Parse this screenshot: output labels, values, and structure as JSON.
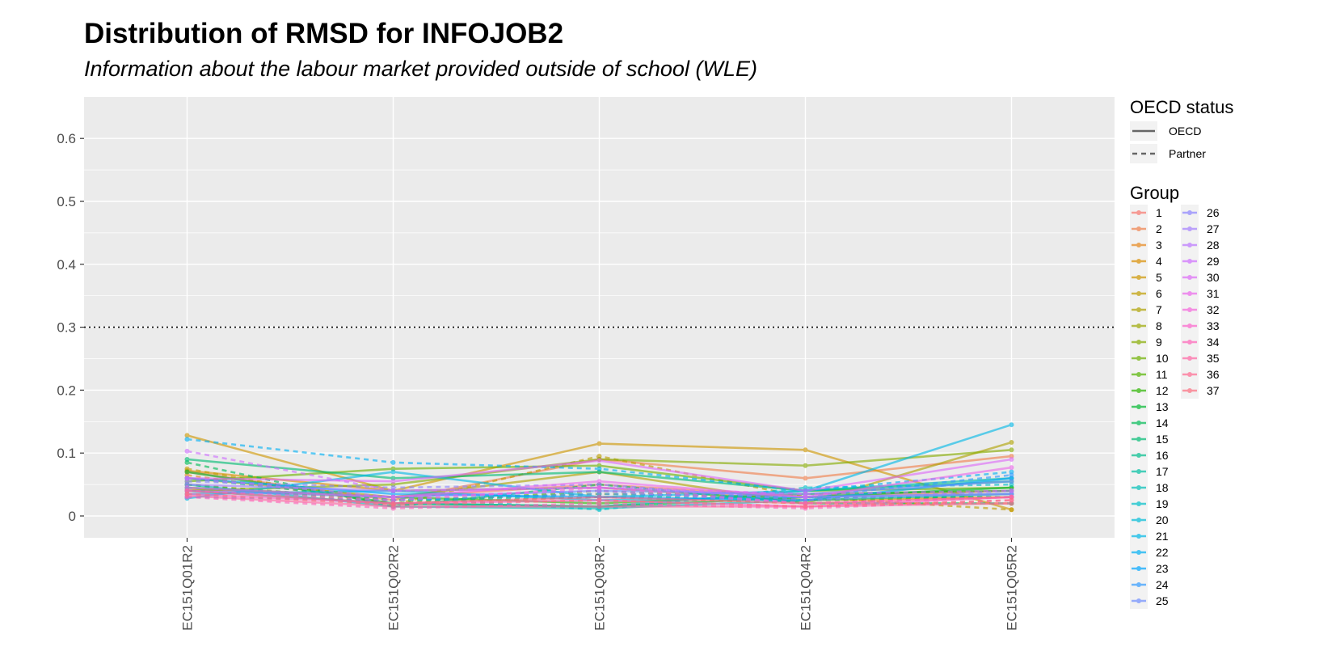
{
  "chart_data": {
    "type": "line",
    "title": "Distribution of RMSD for INFOJOB2",
    "subtitle": "Information about the labour market provided outside of school (WLE)",
    "xlabel": "",
    "ylabel": "",
    "categories": [
      "EC151Q01R2",
      "EC151Q02R2",
      "EC151Q03R2",
      "EC151Q04R2",
      "EC151Q05R2"
    ],
    "ylim": [
      -0.03,
      0.63
    ],
    "yticks": [
      "0",
      "0.1",
      "0.2",
      "0.3",
      "0.4",
      "0.5",
      "0.6"
    ],
    "ytick_values": [
      0,
      0.1,
      0.2,
      0.3,
      0.4,
      0.5,
      0.6
    ],
    "reference_line": {
      "y": 0.3,
      "style": "dotted"
    },
    "grid": true,
    "legend_placement": "right",
    "legends": {
      "linetype": {
        "title": "OECD status",
        "entries": [
          "OECD",
          "Partner"
        ]
      },
      "color": {
        "title": "Group"
      }
    },
    "series": [
      {
        "name": "1",
        "status": "OECD",
        "color": "#F8766D",
        "values": [
          0.042,
          0.03,
          0.05,
          0.03,
          0.04
        ]
      },
      {
        "name": "2",
        "status": "OECD",
        "color": "#F07F4A",
        "values": [
          0.07,
          0.025,
          0.09,
          0.06,
          0.095
        ]
      },
      {
        "name": "3",
        "status": "Partner",
        "color": "#E7861B",
        "values": [
          0.065,
          0.02,
          0.03,
          0.02,
          0.02
        ]
      },
      {
        "name": "4",
        "status": "OECD",
        "color": "#DB8E00",
        "values": [
          0.072,
          0.04,
          0.045,
          0.025,
          0.03
        ]
      },
      {
        "name": "5",
        "status": "OECD",
        "color": "#CE9600",
        "values": [
          0.128,
          0.04,
          0.115,
          0.105,
          0.01
        ]
      },
      {
        "name": "6",
        "status": "Partner",
        "color": "#BF9D00",
        "values": [
          0.075,
          0.018,
          0.095,
          0.03,
          0.01
        ]
      },
      {
        "name": "7",
        "status": "OECD",
        "color": "#AEA200",
        "values": [
          0.06,
          0.03,
          0.07,
          0.02,
          0.117
        ]
      },
      {
        "name": "8",
        "status": "Partner",
        "color": "#9CA700",
        "values": [
          0.05,
          0.025,
          0.035,
          0.03,
          0.03
        ]
      },
      {
        "name": "9",
        "status": "OECD",
        "color": "#86AC00",
        "values": [
          0.04,
          0.05,
          0.09,
          0.08,
          0.105
        ]
      },
      {
        "name": "10",
        "status": "OECD",
        "color": "#6EB100",
        "values": [
          0.055,
          0.075,
          0.08,
          0.04,
          0.045
        ]
      },
      {
        "name": "11",
        "status": "Partner",
        "color": "#53B400",
        "values": [
          0.05,
          0.02,
          0.04,
          0.025,
          0.03
        ]
      },
      {
        "name": "12",
        "status": "OECD",
        "color": "#2BB600",
        "values": [
          0.045,
          0.03,
          0.02,
          0.035,
          0.04
        ]
      },
      {
        "name": "13",
        "status": "OECD",
        "color": "#00B92E",
        "values": [
          0.07,
          0.02,
          0.015,
          0.03,
          0.045
        ]
      },
      {
        "name": "14",
        "status": "Partner",
        "color": "#00BB55",
        "values": [
          0.085,
          0.015,
          0.05,
          0.02,
          0.02
        ]
      },
      {
        "name": "15",
        "status": "OECD",
        "color": "#00BC73",
        "values": [
          0.09,
          0.06,
          0.07,
          0.04,
          0.055
        ]
      },
      {
        "name": "16",
        "status": "Partner",
        "color": "#00BE8C",
        "values": [
          0.06,
          0.025,
          0.03,
          0.03,
          0.03
        ]
      },
      {
        "name": "17",
        "status": "OECD",
        "color": "#00BFA2",
        "values": [
          0.04,
          0.02,
          0.015,
          0.04,
          0.06
        ]
      },
      {
        "name": "18",
        "status": "OECD",
        "color": "#00C0B7",
        "values": [
          0.05,
          0.015,
          0.012,
          0.025,
          0.035
        ]
      },
      {
        "name": "19",
        "status": "Partner",
        "color": "#00BFC9",
        "values": [
          0.045,
          0.03,
          0.01,
          0.045,
          0.05
        ]
      },
      {
        "name": "20",
        "status": "OECD",
        "color": "#00BDD8",
        "values": [
          0.035,
          0.04,
          0.025,
          0.03,
          0.035
        ]
      },
      {
        "name": "21",
        "status": "OECD",
        "color": "#00B8E7",
        "values": [
          0.028,
          0.07,
          0.03,
          0.04,
          0.145
        ]
      },
      {
        "name": "22",
        "status": "Partner",
        "color": "#00B0F4",
        "values": [
          0.122,
          0.085,
          0.075,
          0.04,
          0.07
        ]
      },
      {
        "name": "23",
        "status": "OECD",
        "color": "#00A6FF",
        "values": [
          0.06,
          0.035,
          0.03,
          0.025,
          0.06
        ]
      },
      {
        "name": "24",
        "status": "Partner",
        "color": "#319AFF",
        "values": [
          0.03,
          0.025,
          0.035,
          0.03,
          0.065
        ]
      },
      {
        "name": "25",
        "status": "OECD",
        "color": "#6F8EFF",
        "values": [
          0.04,
          0.03,
          0.04,
          0.035,
          0.055
        ]
      },
      {
        "name": "26",
        "status": "Partner",
        "color": "#8D84FF",
        "values": [
          0.055,
          0.045,
          0.05,
          0.025,
          0.04
        ]
      },
      {
        "name": "27",
        "status": "OECD",
        "color": "#A57EFF",
        "values": [
          0.05,
          0.04,
          0.045,
          0.03,
          0.035
        ]
      },
      {
        "name": "28",
        "status": "Partner",
        "color": "#BB76FF",
        "values": [
          0.06,
          0.03,
          0.04,
          0.02,
          0.03
        ]
      },
      {
        "name": "29",
        "status": "Partner",
        "color": "#CF6FFF",
        "values": [
          0.103,
          0.04,
          0.045,
          0.035,
          0.04
        ]
      },
      {
        "name": "30",
        "status": "OECD",
        "color": "#DE6AF8",
        "values": [
          0.06,
          0.055,
          0.088,
          0.04,
          0.09
        ]
      },
      {
        "name": "31",
        "status": "OECD",
        "color": "#EC68EB",
        "values": [
          0.045,
          0.03,
          0.055,
          0.03,
          0.077
        ]
      },
      {
        "name": "32",
        "status": "Partner",
        "color": "#F564DC",
        "values": [
          0.04,
          0.025,
          0.045,
          0.02,
          0.03
        ]
      },
      {
        "name": "33",
        "status": "OECD",
        "color": "#FC62CC",
        "values": [
          0.035,
          0.02,
          0.025,
          0.015,
          0.03
        ]
      },
      {
        "name": "34",
        "status": "Partner",
        "color": "#FF63B9",
        "values": [
          0.03,
          0.012,
          0.02,
          0.012,
          0.025
        ]
      },
      {
        "name": "35",
        "status": "OECD",
        "color": "#FF66A5",
        "values": [
          0.032,
          0.015,
          0.015,
          0.015,
          0.02
        ]
      },
      {
        "name": "36",
        "status": "OECD",
        "color": "#FF6A91",
        "values": [
          0.04,
          0.02,
          0.03,
          0.02,
          0.03
        ]
      },
      {
        "name": "37",
        "status": "Partner",
        "color": "#FC6F7F",
        "values": [
          0.035,
          0.018,
          0.025,
          0.015,
          0.025
        ]
      }
    ]
  }
}
